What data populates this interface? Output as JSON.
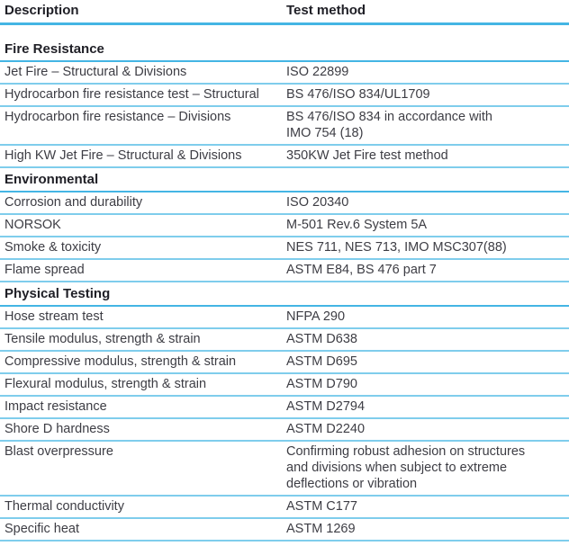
{
  "page": {
    "background_color": "#ffffff",
    "accent_line_color": "#44b5e4",
    "row_line_color": "#7fcdec",
    "text_color": "#3d3d44",
    "heading_color": "#1f1f26"
  },
  "table": {
    "columns": [
      {
        "label": "Description"
      },
      {
        "label": "Test method"
      }
    ],
    "sections": [
      {
        "title": "Fire Resistance",
        "rows": [
          {
            "description": "Jet Fire – Structural & Divisions",
            "test_method": "ISO 22899"
          },
          {
            "description": "Hydrocarbon fire resistance test – Structural",
            "test_method": "BS 476/ISO 834/UL1709"
          },
          {
            "description": "Hydrocarbon fire resistance – Divisions",
            "test_method": "BS 476/ISO 834 in accordance with\nIMO 754 (18)"
          },
          {
            "description": "High KW Jet Fire – Structural & Divisions",
            "test_method": "350KW Jet Fire test method"
          }
        ]
      },
      {
        "title": "Environmental",
        "rows": [
          {
            "description": "Corrosion and durability",
            "test_method": "ISO 20340"
          },
          {
            "description": "NORSOK",
            "test_method": "M-501 Rev.6 System 5A"
          },
          {
            "description": "Smoke & toxicity",
            "test_method": "NES 711, NES 713, IMO MSC307(88)"
          },
          {
            "description": "Flame spread",
            "test_method": "ASTM E84, BS 476 part 7"
          }
        ]
      },
      {
        "title": "Physical Testing",
        "rows": [
          {
            "description": "Hose stream test",
            "test_method": "NFPA 290"
          },
          {
            "description": "Tensile modulus, strength & strain",
            "test_method": "ASTM D638"
          },
          {
            "description": "Compressive modulus, strength & strain",
            "test_method": "ASTM D695"
          },
          {
            "description": "Flexural modulus, strength & strain",
            "test_method": "ASTM D790"
          },
          {
            "description": "Impact resistance",
            "test_method": "ASTM D2794"
          },
          {
            "description": "Shore D hardness",
            "test_method": "ASTM D2240"
          },
          {
            "description": "Blast overpressure",
            "test_method": "Confirming robust adhesion on structures\nand divisions when subject to extreme\ndeflections or vibration"
          },
          {
            "description": "Thermal conductivity",
            "test_method": "ASTM C177"
          },
          {
            "description": "Specific heat",
            "test_method": "ASTM 1269"
          }
        ]
      }
    ]
  }
}
